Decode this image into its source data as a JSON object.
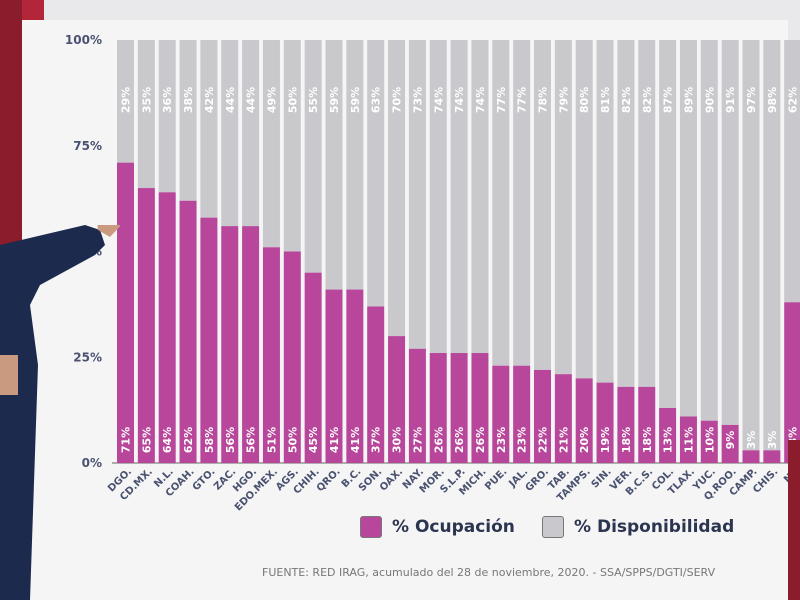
{
  "chart_data": {
    "type": "bar",
    "stacked": true,
    "categories": [
      "DGO.",
      "CD.MX.",
      "N.L.",
      "COAH.",
      "GTO.",
      "ZAC.",
      "HGO.",
      "EDO.MEX.",
      "AGS.",
      "CHIH.",
      "QRO.",
      "B.C.",
      "SON.",
      "OAX.",
      "NAY.",
      "MOR.",
      "S.L.P.",
      "MICH.",
      "PUE.",
      "JAL.",
      "GRO.",
      "TAB.",
      "TAMPS.",
      "SIN.",
      "VER.",
      "B.C.S.",
      "COL.",
      "TLAX.",
      "YUC.",
      "Q.ROO.",
      "CAMP.",
      "CHIS.",
      "NA"
    ],
    "series": [
      {
        "name": "% Ocupación",
        "color": "#b8479b",
        "values": [
          71,
          65,
          64,
          62,
          58,
          56,
          56,
          51,
          50,
          45,
          41,
          41,
          37,
          30,
          27,
          26,
          26,
          26,
          23,
          23,
          22,
          21,
          20,
          19,
          18,
          18,
          13,
          11,
          10,
          9,
          3,
          3,
          38
        ]
      },
      {
        "name": "% Disponibilidad",
        "color": "#c9c9cd",
        "values": [
          29,
          35,
          36,
          38,
          42,
          44,
          44,
          49,
          50,
          55,
          59,
          59,
          63,
          70,
          73,
          74,
          74,
          74,
          77,
          77,
          78,
          79,
          80,
          81,
          82,
          82,
          87,
          89,
          90,
          91,
          97,
          98,
          62
        ]
      }
    ],
    "yticks": [
      "0%",
      "25%",
      "50%",
      "75%",
      "100%"
    ],
    "ylim": [
      0,
      100
    ],
    "legend_position": "bottom"
  },
  "legend": {
    "occupation": "% Ocupación",
    "availability": "% Disponibilidad"
  },
  "source": "FUENTE: RED IRAG, acumulado del 28 de noviembre, 2020. -  SSA/SPPS/DGTI/SERV"
}
